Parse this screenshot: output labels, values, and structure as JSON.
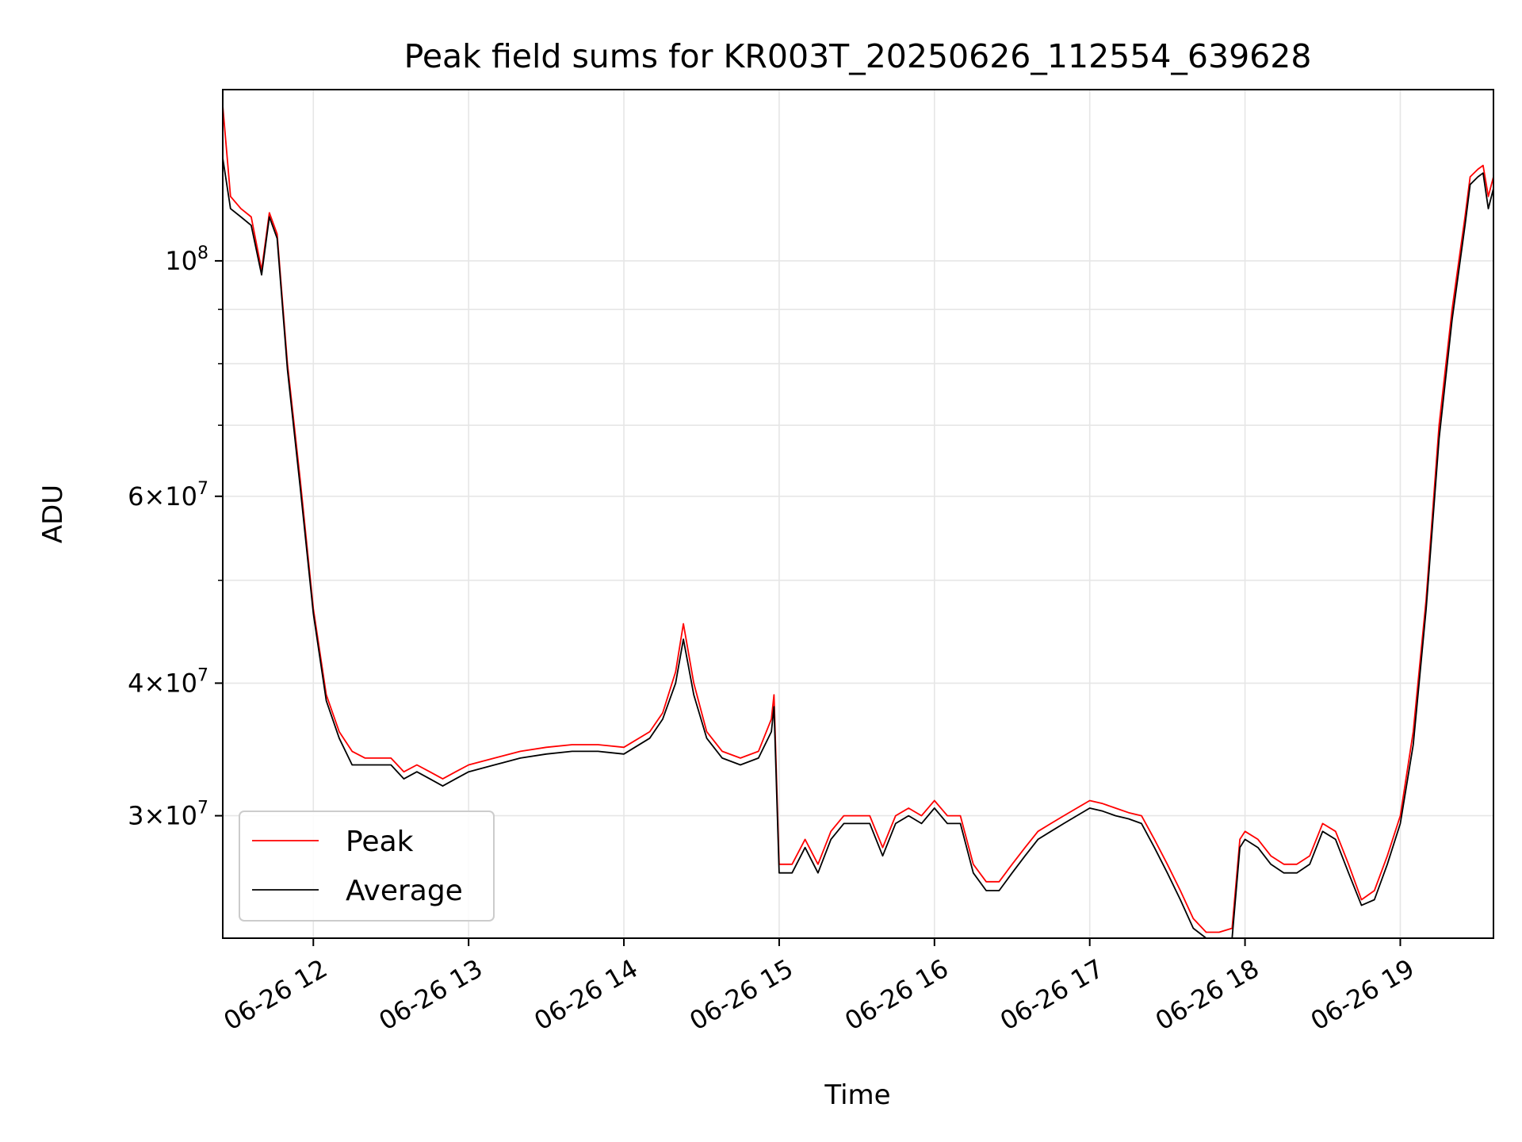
{
  "chart_data": {
    "type": "line",
    "title": "Peak field sums for KR003T_20250626_112554_639628",
    "xlabel": "Time",
    "ylabel": "ADU",
    "yscale": "log",
    "grid": true,
    "legend_position": "lower-left",
    "xlim": [
      "2025-06-26 11:25",
      "2025-06-26 19:36"
    ],
    "ylim": [
      23000000,
      145000000
    ],
    "x_ticks": [
      {
        "value": "2025-06-26 12:00",
        "label": "06-26 12"
      },
      {
        "value": "2025-06-26 13:00",
        "label": "06-26 13"
      },
      {
        "value": "2025-06-26 14:00",
        "label": "06-26 14"
      },
      {
        "value": "2025-06-26 15:00",
        "label": "06-26 15"
      },
      {
        "value": "2025-06-26 16:00",
        "label": "06-26 16"
      },
      {
        "value": "2025-06-26 17:00",
        "label": "06-26 17"
      },
      {
        "value": "2025-06-26 18:00",
        "label": "06-26 18"
      },
      {
        "value": "2025-06-26 19:00",
        "label": "06-26 19"
      }
    ],
    "y_ticks_major": [
      {
        "value": 30000000,
        "mant": "3",
        "exp": "7"
      },
      {
        "value": 40000000,
        "mant": "4",
        "exp": "7"
      },
      {
        "value": 60000000,
        "mant": "6",
        "exp": "7"
      },
      {
        "value": 100000000,
        "mant": "",
        "exp": "8"
      }
    ],
    "y_ticks_minor": [
      50000000,
      70000000,
      80000000,
      90000000
    ],
    "series": [
      {
        "name": "Peak",
        "color": "#ff0000",
        "x": [
          "11:25",
          "11:28",
          "11:32",
          "11:36",
          "11:40",
          "11:43",
          "11:46",
          "11:50",
          "11:55",
          "12:00",
          "12:05",
          "12:10",
          "12:15",
          "12:20",
          "12:25",
          "12:30",
          "12:35",
          "12:40",
          "12:45",
          "12:50",
          "12:55",
          "13:00",
          "13:10",
          "13:20",
          "13:30",
          "13:40",
          "13:50",
          "14:00",
          "14:10",
          "14:15",
          "14:20",
          "14:23",
          "14:27",
          "14:32",
          "14:38",
          "14:45",
          "14:52",
          "14:57",
          "14:58",
          "15:00",
          "15:05",
          "15:10",
          "15:15",
          "15:20",
          "15:25",
          "15:30",
          "15:35",
          "15:40",
          "15:45",
          "15:50",
          "15:55",
          "16:00",
          "16:05",
          "16:10",
          "16:15",
          "16:20",
          "16:25",
          "16:30",
          "16:35",
          "16:40",
          "16:45",
          "16:50",
          "16:55",
          "17:00",
          "17:05",
          "17:10",
          "17:15",
          "17:20",
          "17:25",
          "17:30",
          "17:35",
          "17:40",
          "17:45",
          "17:50",
          "17:55",
          "17:58",
          "18:00",
          "18:05",
          "18:10",
          "18:15",
          "18:20",
          "18:25",
          "18:30",
          "18:35",
          "18:40",
          "18:45",
          "18:50",
          "18:55",
          "19:00",
          "19:05",
          "19:10",
          "19:15",
          "19:20",
          "19:25",
          "19:27",
          "19:30",
          "19:32",
          "19:34",
          "19:36"
        ],
        "y": [
          140000000,
          115000000,
          112000000,
          110000000,
          98000000,
          111000000,
          106000000,
          80000000,
          62000000,
          47000000,
          39000000,
          36000000,
          34500000,
          34000000,
          34000000,
          34000000,
          33000000,
          33500000,
          33000000,
          32500000,
          33000000,
          33500000,
          34000000,
          34500000,
          34800000,
          35000000,
          35000000,
          34800000,
          36000000,
          37500000,
          41000000,
          45500000,
          40000000,
          36000000,
          34500000,
          34000000,
          34500000,
          37000000,
          39000000,
          27000000,
          27000000,
          28500000,
          27000000,
          29000000,
          30000000,
          30000000,
          30000000,
          28000000,
          30000000,
          30500000,
          30000000,
          31000000,
          30000000,
          30000000,
          27000000,
          26000000,
          26000000,
          27000000,
          28000000,
          29000000,
          29500000,
          30000000,
          30500000,
          31000000,
          30800000,
          30500000,
          30200000,
          30000000,
          28500000,
          27000000,
          25500000,
          24000000,
          23300000,
          23300000,
          23500000,
          28500000,
          29000000,
          28500000,
          27500000,
          27000000,
          27000000,
          27500000,
          29500000,
          29000000,
          27000000,
          25000000,
          25500000,
          27500000,
          30000000,
          36000000,
          48000000,
          70000000,
          90000000,
          110000000,
          120000000,
          122000000,
          123000000,
          115000000,
          120000000
        ]
      },
      {
        "name": "Average",
        "color": "#000000",
        "x": [
          "11:25",
          "11:28",
          "11:32",
          "11:36",
          "11:40",
          "11:43",
          "11:46",
          "11:50",
          "11:55",
          "12:00",
          "12:05",
          "12:10",
          "12:15",
          "12:20",
          "12:25",
          "12:30",
          "12:35",
          "12:40",
          "12:45",
          "12:50",
          "12:55",
          "13:00",
          "13:10",
          "13:20",
          "13:30",
          "13:40",
          "13:50",
          "14:00",
          "14:10",
          "14:15",
          "14:20",
          "14:23",
          "14:27",
          "14:32",
          "14:38",
          "14:45",
          "14:52",
          "14:57",
          "14:58",
          "15:00",
          "15:05",
          "15:10",
          "15:15",
          "15:20",
          "15:25",
          "15:30",
          "15:35",
          "15:40",
          "15:45",
          "15:50",
          "15:55",
          "16:00",
          "16:05",
          "16:10",
          "16:15",
          "16:20",
          "16:25",
          "16:30",
          "16:35",
          "16:40",
          "16:45",
          "16:50",
          "16:55",
          "17:00",
          "17:05",
          "17:10",
          "17:15",
          "17:20",
          "17:25",
          "17:30",
          "17:35",
          "17:40",
          "17:45",
          "17:50",
          "17:55",
          "17:58",
          "18:00",
          "18:05",
          "18:10",
          "18:15",
          "18:20",
          "18:25",
          "18:30",
          "18:35",
          "18:40",
          "18:45",
          "18:50",
          "18:55",
          "19:00",
          "19:05",
          "19:10",
          "19:15",
          "19:20",
          "19:25",
          "19:27",
          "19:30",
          "19:32",
          "19:34",
          "19:36"
        ],
        "y": [
          125000000,
          112000000,
          110000000,
          108000000,
          97000000,
          110000000,
          105000000,
          79000000,
          61000000,
          46500000,
          38500000,
          35500000,
          33500000,
          33500000,
          33500000,
          33500000,
          32500000,
          33000000,
          32500000,
          32000000,
          32500000,
          33000000,
          33500000,
          34000000,
          34300000,
          34500000,
          34500000,
          34300000,
          35500000,
          37000000,
          40000000,
          44000000,
          39000000,
          35500000,
          34000000,
          33500000,
          34000000,
          36000000,
          38000000,
          26500000,
          26500000,
          28000000,
          26500000,
          28500000,
          29500000,
          29500000,
          29500000,
          27500000,
          29500000,
          30000000,
          29500000,
          30500000,
          29500000,
          29500000,
          26500000,
          25500000,
          25500000,
          26500000,
          27500000,
          28500000,
          29000000,
          29500000,
          30000000,
          30500000,
          30300000,
          30000000,
          29800000,
          29500000,
          28000000,
          26500000,
          25000000,
          23500000,
          23000000,
          23000000,
          23000000,
          28000000,
          28500000,
          28000000,
          27000000,
          26500000,
          26500000,
          27000000,
          29000000,
          28500000,
          26500000,
          24700000,
          25000000,
          27000000,
          29500000,
          35000000,
          47000000,
          68000000,
          88000000,
          108000000,
          118000000,
          120000000,
          121000000,
          112000000,
          117000000
        ]
      }
    ]
  }
}
